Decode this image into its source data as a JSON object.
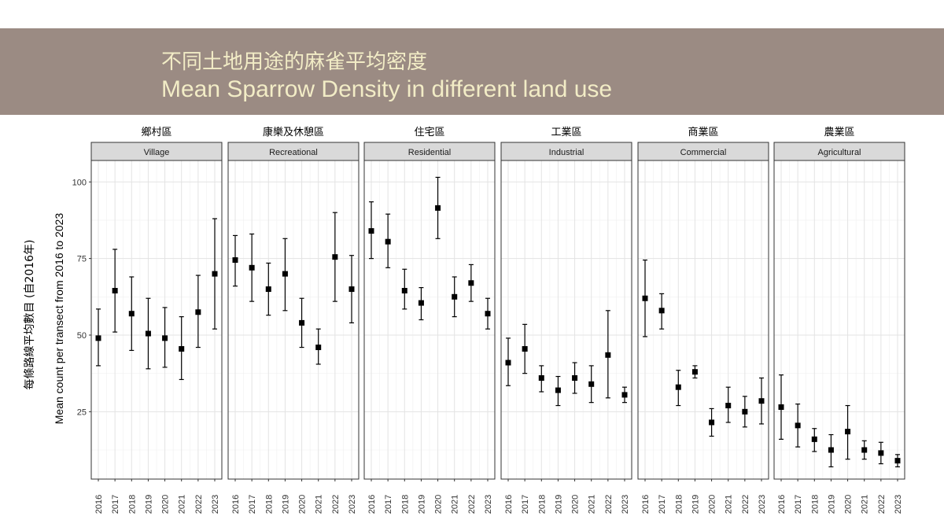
{
  "header": {
    "title_zh": "不同土地用途的麻雀平均密度",
    "title_en": "Mean Sparrow Density in different land use",
    "background": "#9b8b83",
    "text_color": "#f2ecc6"
  },
  "chart_data": {
    "type": "scatter",
    "style": "point with error bars, faceted by land use",
    "ylabel_zh": "每條路線平均數目 (自2016年)",
    "ylabel_en": "Mean count per transect from 2016 to 2023",
    "ylim": [
      3,
      107
    ],
    "yticks": [
      25,
      50,
      75,
      100
    ],
    "x": [
      "2016",
      "2017",
      "2018",
      "2019",
      "2020",
      "2021",
      "2022",
      "2023"
    ],
    "grid": true,
    "facets": [
      {
        "label_zh": "鄉村區",
        "label_en": "Village",
        "mean": [
          49,
          64.5,
          57,
          50.5,
          49,
          45.5,
          57.5,
          70
        ],
        "lower": [
          40,
          51,
          45,
          39,
          39.5,
          35.5,
          46,
          52
        ],
        "upper": [
          58.5,
          78,
          69,
          62,
          59,
          56,
          69.5,
          88
        ]
      },
      {
        "label_zh": "康樂及休憩區",
        "label_en": "Recreational",
        "mean": [
          74.5,
          72,
          65,
          70,
          54,
          46,
          75.5,
          65
        ],
        "lower": [
          66,
          61,
          56.5,
          58,
          46,
          40.5,
          61,
          54
        ],
        "upper": [
          82.5,
          83,
          73.5,
          81.5,
          62,
          52,
          90,
          76
        ]
      },
      {
        "label_zh": "住宅區",
        "label_en": "Residential",
        "mean": [
          84,
          80.5,
          64.5,
          60.5,
          91.5,
          62.5,
          67,
          57
        ],
        "lower": [
          75,
          72,
          58.5,
          55,
          81.5,
          56,
          61,
          52
        ],
        "upper": [
          93.5,
          89.5,
          71.5,
          65.5,
          101.5,
          69,
          73,
          62
        ]
      },
      {
        "label_zh": "工業區",
        "label_en": "Industrial",
        "mean": [
          41,
          45.5,
          36,
          32,
          36,
          34,
          43.5,
          30.5
        ],
        "lower": [
          33.5,
          37.5,
          31.5,
          27,
          31,
          28,
          29.5,
          28
        ],
        "upper": [
          49,
          53.5,
          40,
          36.5,
          41,
          40,
          58,
          33
        ]
      },
      {
        "label_zh": "商業區",
        "label_en": "Commercial",
        "mean": [
          62,
          58,
          33,
          38,
          21.5,
          27,
          25,
          28.5
        ],
        "lower": [
          49.5,
          52,
          27,
          36,
          17,
          21.5,
          20,
          21
        ],
        "upper": [
          74.5,
          63.5,
          38.5,
          40,
          26,
          33,
          30,
          36
        ]
      },
      {
        "label_zh": "農業區",
        "label_en": "Agricultural",
        "mean": [
          26.5,
          20.5,
          16,
          12.5,
          18.5,
          12.5,
          11.5,
          9
        ],
        "lower": [
          16,
          13.5,
          12,
          7,
          9.5,
          9.5,
          8,
          7
        ],
        "upper": [
          37,
          27.5,
          19.5,
          17.5,
          27,
          15.5,
          15,
          11
        ]
      }
    ]
  }
}
